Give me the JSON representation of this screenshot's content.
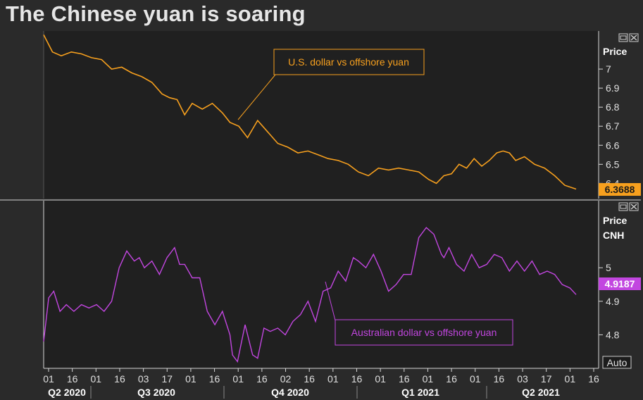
{
  "title": "The Chinese yuan is soaring",
  "colors": {
    "usd": "#f7a01e",
    "aud": "#c246e0",
    "bg": "#202020",
    "page": "#2a2a2a"
  },
  "buttons": {
    "auto_label": "Auto"
  },
  "chart_data": [
    {
      "type": "line",
      "series": [
        {
          "name": "U.S. dollar vs offshore yuan",
          "color": "#f7a01e"
        }
      ],
      "annotation": "U.S. dollar vs offshore yuan",
      "ylabel": "Price",
      "yticks": [
        "7",
        "6.9",
        "6.8",
        "6.7",
        "6.6",
        "6.5",
        "6.4"
      ],
      "ylim": [
        6.32,
        7.2
      ],
      "last_value": "6.3688",
      "x": [
        0,
        7,
        14,
        22,
        30,
        38,
        46,
        54,
        62,
        70,
        78,
        86,
        94,
        100,
        106,
        112,
        118,
        126,
        134,
        142,
        148,
        155,
        162,
        170,
        178,
        186,
        194,
        202,
        210,
        218,
        226,
        234,
        242,
        250,
        258,
        266,
        274,
        282,
        290,
        298,
        306,
        312,
        318,
        324,
        330,
        336,
        342,
        348,
        354,
        360,
        365,
        370,
        375,
        382,
        390,
        398,
        406,
        414,
        423
      ],
      "values": [
        7.18,
        7.09,
        7.07,
        7.09,
        7.08,
        7.06,
        7.05,
        7.0,
        7.01,
        6.98,
        6.96,
        6.93,
        6.87,
        6.85,
        6.84,
        6.76,
        6.82,
        6.79,
        6.82,
        6.77,
        6.72,
        6.7,
        6.64,
        6.73,
        6.67,
        6.61,
        6.59,
        6.56,
        6.57,
        6.55,
        6.53,
        6.52,
        6.5,
        6.46,
        6.44,
        6.48,
        6.47,
        6.48,
        6.47,
        6.46,
        6.42,
        6.4,
        6.44,
        6.45,
        6.5,
        6.48,
        6.53,
        6.49,
        6.52,
        6.56,
        6.57,
        6.56,
        6.52,
        6.54,
        6.5,
        6.48,
        6.44,
        6.39,
        6.37
      ]
    },
    {
      "type": "line",
      "series": [
        {
          "name": "Australian dollar vs offshore yuan",
          "color": "#c246e0"
        }
      ],
      "annotation": "Australian dollar vs offshore yuan",
      "ylabel": "Price",
      "unit_label": "CNH",
      "yticks": [
        "5",
        "4.9",
        "4.8"
      ],
      "ylim": [
        4.7,
        5.2
      ],
      "last_value": "4.9187",
      "x": [
        0,
        4,
        8,
        13,
        18,
        24,
        30,
        36,
        42,
        48,
        54,
        60,
        66,
        72,
        76,
        80,
        86,
        92,
        98,
        104,
        108,
        112,
        118,
        124,
        130,
        136,
        142,
        148,
        150,
        154,
        160,
        166,
        170,
        175,
        180,
        186,
        192,
        198,
        204,
        210,
        216,
        222,
        228,
        234,
        240,
        246,
        250,
        256,
        262,
        268,
        274,
        280,
        286,
        292,
        298,
        304,
        310,
        316,
        318,
        322,
        328,
        334,
        340,
        346,
        352,
        358,
        364,
        370,
        376,
        382,
        388,
        394,
        400,
        406,
        412,
        418,
        423
      ],
      "values": [
        4.78,
        4.91,
        4.93,
        4.87,
        4.89,
        4.87,
        4.89,
        4.88,
        4.89,
        4.87,
        4.9,
        5.0,
        5.05,
        5.02,
        5.03,
        5.0,
        5.02,
        4.98,
        5.03,
        5.06,
        5.01,
        5.01,
        4.97,
        4.97,
        4.87,
        4.83,
        4.87,
        4.8,
        4.74,
        4.72,
        4.83,
        4.74,
        4.73,
        4.82,
        4.81,
        4.82,
        4.8,
        4.84,
        4.86,
        4.9,
        4.84,
        4.93,
        4.94,
        4.99,
        4.96,
        5.03,
        5.02,
        5.0,
        5.04,
        4.99,
        4.93,
        4.95,
        4.98,
        4.98,
        5.09,
        5.12,
        5.1,
        5.04,
        5.03,
        5.06,
        5.01,
        4.99,
        5.04,
        5.0,
        5.01,
        5.04,
        5.03,
        4.99,
        5.02,
        4.99,
        5.02,
        4.98,
        4.99,
        4.98,
        4.95,
        4.94,
        4.92
      ]
    }
  ],
  "x_axis": {
    "day_ticks": [
      "01",
      "16",
      "01",
      "16",
      "03",
      "17",
      "01",
      "16",
      "01",
      "16",
      "02",
      "16",
      "01",
      "16",
      "01",
      "16",
      "01",
      "16",
      "01",
      "16",
      "03",
      "17",
      "01",
      "16"
    ],
    "quarters": [
      "Q2 2020",
      "Q3 2020",
      "Q4 2020",
      "Q1 2021",
      "Q2 2021"
    ]
  }
}
